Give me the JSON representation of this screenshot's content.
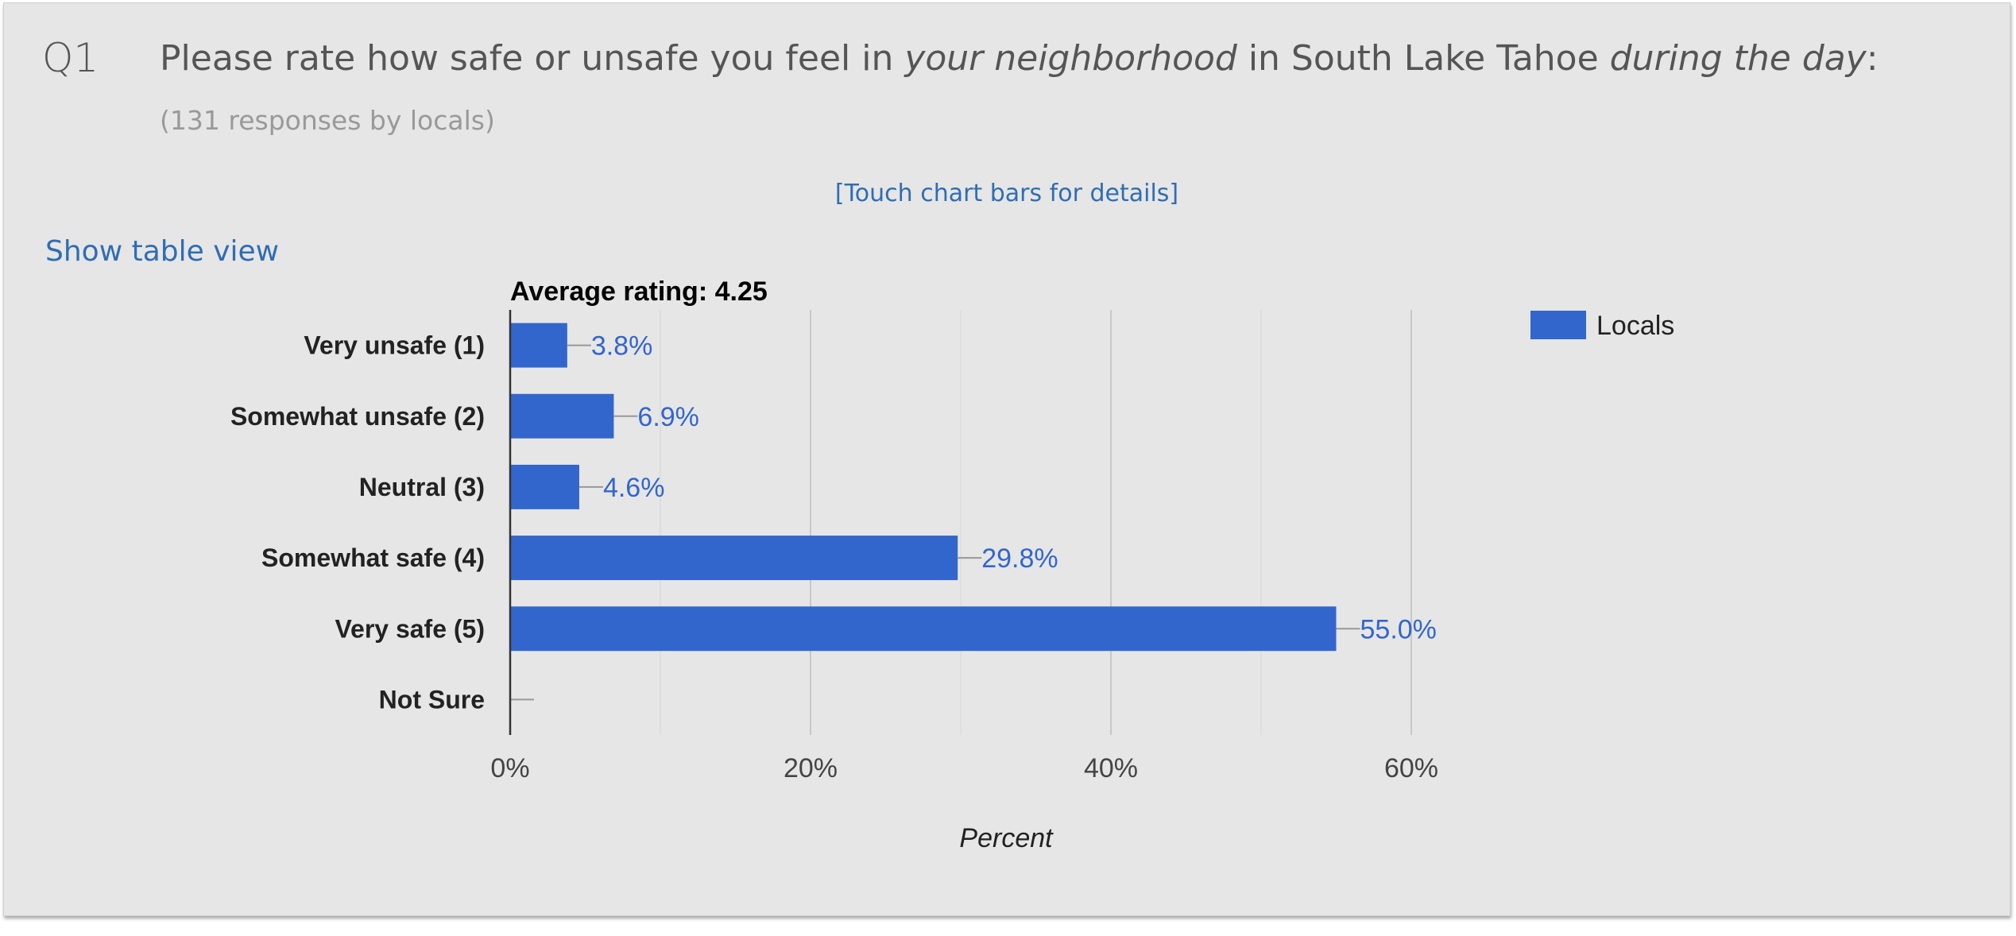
{
  "question": {
    "number": "Q1",
    "text_before": "Please rate how safe or unsafe you feel in ",
    "text_em1": "your neighborhood",
    "text_mid": " in South Lake Tahoe ",
    "text_em2": "during the day",
    "text_after": ":",
    "subtitle": "(131 responses by locals)"
  },
  "touch_hint": "[Touch chart bars for details]",
  "table_view_link": "Show table view",
  "colors": {
    "bar": "#3366cc",
    "grid": "#c8c8c8",
    "axis": "#333333"
  },
  "chart_data": {
    "type": "bar",
    "orientation": "horizontal",
    "title": "Average rating: 4.25",
    "categories": [
      "Very unsafe (1)",
      "Somewhat unsafe (2)",
      "Neutral (3)",
      "Somewhat safe (4)",
      "Very safe (5)",
      "Not Sure"
    ],
    "series": [
      {
        "name": "Locals",
        "values": [
          3.8,
          6.9,
          4.6,
          29.8,
          55.0,
          0
        ],
        "labels": [
          "3.8%",
          "6.9%",
          "4.6%",
          "29.8%",
          "55.0%",
          ""
        ]
      }
    ],
    "xlabel": "Percent",
    "xlim": [
      0,
      60
    ],
    "xticks": [
      "0%",
      "20%",
      "40%",
      "60%"
    ],
    "xtick_values": [
      0,
      20,
      40,
      60
    ],
    "grid": true,
    "legend_position": "top-right"
  }
}
